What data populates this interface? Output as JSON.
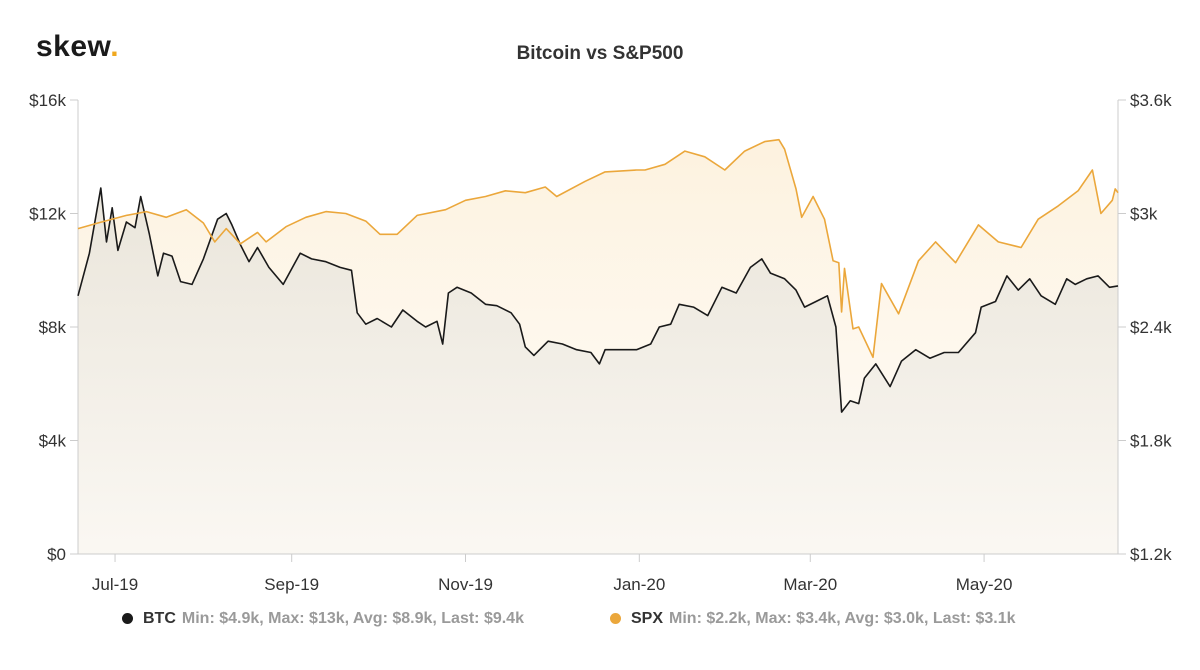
{
  "brand": {
    "name": "skew",
    "dot": "."
  },
  "chart_data": {
    "type": "line",
    "title": "Bitcoin vs S&P500",
    "x_tick_labels": [
      "Jul-19",
      "Sep-19",
      "Nov-19",
      "Jan-20",
      "Mar-20",
      "May-20"
    ],
    "x_ticks": [
      "2019-07-01",
      "2019-09-01",
      "2019-11-01",
      "2020-01-01",
      "2020-03-01",
      "2020-05-01"
    ],
    "x_range": [
      "2019-06-18",
      "2020-06-17"
    ],
    "y_left": {
      "ticks": [
        0,
        4000,
        8000,
        12000,
        16000
      ],
      "tick_labels": [
        "$0",
        "$4k",
        "$8k",
        "$12k",
        "$16k"
      ],
      "ylim": [
        0,
        16000
      ]
    },
    "y_right": {
      "ticks": [
        1200,
        1800,
        2400,
        3000,
        3600
      ],
      "tick_labels": [
        "$1.2k",
        "$1.8k",
        "$2.4k",
        "$3k",
        "$3.6k"
      ],
      "ylim": [
        1200,
        3600
      ]
    },
    "grid": false,
    "legend_position": "bottom",
    "series": [
      {
        "name": "BTC",
        "axis": "left",
        "color": "#1a1a1a",
        "summary": "Min: $4.9k, Max: $13k, Avg: $8.9k, Last: $9.4k",
        "points": [
          [
            "2019-06-18",
            9100
          ],
          [
            "2019-06-22",
            10600
          ],
          [
            "2019-06-26",
            12900
          ],
          [
            "2019-06-28",
            11000
          ],
          [
            "2019-06-30",
            12200
          ],
          [
            "2019-07-02",
            10700
          ],
          [
            "2019-07-05",
            11700
          ],
          [
            "2019-07-08",
            11500
          ],
          [
            "2019-07-10",
            12600
          ],
          [
            "2019-07-13",
            11300
          ],
          [
            "2019-07-16",
            9800
          ],
          [
            "2019-07-18",
            10600
          ],
          [
            "2019-07-21",
            10500
          ],
          [
            "2019-07-24",
            9600
          ],
          [
            "2019-07-28",
            9500
          ],
          [
            "2019-08-01",
            10400
          ],
          [
            "2019-08-06",
            11800
          ],
          [
            "2019-08-09",
            12000
          ],
          [
            "2019-08-11",
            11600
          ],
          [
            "2019-08-14",
            10900
          ],
          [
            "2019-08-17",
            10300
          ],
          [
            "2019-08-20",
            10800
          ],
          [
            "2019-08-24",
            10100
          ],
          [
            "2019-08-29",
            9500
          ],
          [
            "2019-09-04",
            10600
          ],
          [
            "2019-09-08",
            10400
          ],
          [
            "2019-09-13",
            10300
          ],
          [
            "2019-09-18",
            10100
          ],
          [
            "2019-09-22",
            10000
          ],
          [
            "2019-09-24",
            8500
          ],
          [
            "2019-09-27",
            8100
          ],
          [
            "2019-10-01",
            8300
          ],
          [
            "2019-10-06",
            8000
          ],
          [
            "2019-10-10",
            8600
          ],
          [
            "2019-10-15",
            8200
          ],
          [
            "2019-10-18",
            8000
          ],
          [
            "2019-10-22",
            8200
          ],
          [
            "2019-10-24",
            7400
          ],
          [
            "2019-10-26",
            9200
          ],
          [
            "2019-10-29",
            9400
          ],
          [
            "2019-11-03",
            9200
          ],
          [
            "2019-11-08",
            8800
          ],
          [
            "2019-11-12",
            8750
          ],
          [
            "2019-11-17",
            8500
          ],
          [
            "2019-11-20",
            8100
          ],
          [
            "2019-11-22",
            7300
          ],
          [
            "2019-11-25",
            7000
          ],
          [
            "2019-11-30",
            7500
          ],
          [
            "2019-12-05",
            7400
          ],
          [
            "2019-12-10",
            7200
          ],
          [
            "2019-12-15",
            7100
          ],
          [
            "2019-12-18",
            6700
          ],
          [
            "2019-12-20",
            7200
          ],
          [
            "2019-12-25",
            7200
          ],
          [
            "2019-12-31",
            7200
          ],
          [
            "2020-01-05",
            7400
          ],
          [
            "2020-01-08",
            8000
          ],
          [
            "2020-01-12",
            8100
          ],
          [
            "2020-01-15",
            8800
          ],
          [
            "2020-01-20",
            8700
          ],
          [
            "2020-01-25",
            8400
          ],
          [
            "2020-01-30",
            9400
          ],
          [
            "2020-02-04",
            9200
          ],
          [
            "2020-02-09",
            10100
          ],
          [
            "2020-02-13",
            10400
          ],
          [
            "2020-02-16",
            9900
          ],
          [
            "2020-02-21",
            9700
          ],
          [
            "2020-02-25",
            9300
          ],
          [
            "2020-02-28",
            8700
          ],
          [
            "2020-03-03",
            8900
          ],
          [
            "2020-03-07",
            9100
          ],
          [
            "2020-03-10",
            8000
          ],
          [
            "2020-03-12",
            5000
          ],
          [
            "2020-03-15",
            5400
          ],
          [
            "2020-03-18",
            5300
          ],
          [
            "2020-03-20",
            6200
          ],
          [
            "2020-03-24",
            6700
          ],
          [
            "2020-03-29",
            5900
          ],
          [
            "2020-04-02",
            6800
          ],
          [
            "2020-04-07",
            7200
          ],
          [
            "2020-04-12",
            6900
          ],
          [
            "2020-04-17",
            7100
          ],
          [
            "2020-04-22",
            7100
          ],
          [
            "2020-04-28",
            7800
          ],
          [
            "2020-04-30",
            8700
          ],
          [
            "2020-05-05",
            8900
          ],
          [
            "2020-05-09",
            9800
          ],
          [
            "2020-05-13",
            9300
          ],
          [
            "2020-05-17",
            9700
          ],
          [
            "2020-05-21",
            9100
          ],
          [
            "2020-05-26",
            8800
          ],
          [
            "2020-05-30",
            9700
          ],
          [
            "2020-06-02",
            9500
          ],
          [
            "2020-06-06",
            9700
          ],
          [
            "2020-06-10",
            9800
          ],
          [
            "2020-06-14",
            9400
          ],
          [
            "2020-06-17",
            9450
          ]
        ]
      },
      {
        "name": "SPX",
        "axis": "right",
        "color": "#eba73b",
        "summary": "Min: $2.2k, Max: $3.4k, Avg: $3.0k, Last: $3.1k",
        "points": [
          [
            "2019-06-18",
            2920
          ],
          [
            "2019-06-25",
            2950
          ],
          [
            "2019-07-05",
            2990
          ],
          [
            "2019-07-12",
            3010
          ],
          [
            "2019-07-19",
            2980
          ],
          [
            "2019-07-26",
            3020
          ],
          [
            "2019-08-01",
            2950
          ],
          [
            "2019-08-05",
            2850
          ],
          [
            "2019-08-09",
            2920
          ],
          [
            "2019-08-14",
            2840
          ],
          [
            "2019-08-20",
            2900
          ],
          [
            "2019-08-23",
            2850
          ],
          [
            "2019-08-30",
            2930
          ],
          [
            "2019-09-06",
            2980
          ],
          [
            "2019-09-13",
            3010
          ],
          [
            "2019-09-20",
            3000
          ],
          [
            "2019-09-27",
            2960
          ],
          [
            "2019-10-02",
            2890
          ],
          [
            "2019-10-08",
            2890
          ],
          [
            "2019-10-15",
            2990
          ],
          [
            "2019-10-25",
            3020
          ],
          [
            "2019-11-01",
            3070
          ],
          [
            "2019-11-08",
            3090
          ],
          [
            "2019-11-15",
            3120
          ],
          [
            "2019-11-22",
            3110
          ],
          [
            "2019-11-29",
            3140
          ],
          [
            "2019-12-03",
            3090
          ],
          [
            "2019-12-13",
            3170
          ],
          [
            "2019-12-20",
            3220
          ],
          [
            "2019-12-31",
            3230
          ],
          [
            "2020-01-03",
            3230
          ],
          [
            "2020-01-10",
            3260
          ],
          [
            "2020-01-17",
            3330
          ],
          [
            "2020-01-24",
            3300
          ],
          [
            "2020-01-31",
            3230
          ],
          [
            "2020-02-07",
            3330
          ],
          [
            "2020-02-14",
            3380
          ],
          [
            "2020-02-19",
            3390
          ],
          [
            "2020-02-21",
            3340
          ],
          [
            "2020-02-25",
            3130
          ],
          [
            "2020-02-27",
            2980
          ],
          [
            "2020-03-02",
            3090
          ],
          [
            "2020-03-06",
            2970
          ],
          [
            "2020-03-09",
            2750
          ],
          [
            "2020-03-11",
            2740
          ],
          [
            "2020-03-12",
            2480
          ],
          [
            "2020-03-13",
            2710
          ],
          [
            "2020-03-16",
            2390
          ],
          [
            "2020-03-18",
            2400
          ],
          [
            "2020-03-23",
            2240
          ],
          [
            "2020-03-26",
            2630
          ],
          [
            "2020-04-01",
            2470
          ],
          [
            "2020-04-08",
            2750
          ],
          [
            "2020-04-14",
            2850
          ],
          [
            "2020-04-21",
            2740
          ],
          [
            "2020-04-29",
            2940
          ],
          [
            "2020-05-06",
            2850
          ],
          [
            "2020-05-14",
            2820
          ],
          [
            "2020-05-20",
            2970
          ],
          [
            "2020-05-27",
            3040
          ],
          [
            "2020-06-03",
            3120
          ],
          [
            "2020-06-08",
            3230
          ],
          [
            "2020-06-11",
            3000
          ],
          [
            "2020-06-15",
            3070
          ],
          [
            "2020-06-16",
            3130
          ],
          [
            "2020-06-17",
            3110
          ]
        ]
      }
    ]
  }
}
